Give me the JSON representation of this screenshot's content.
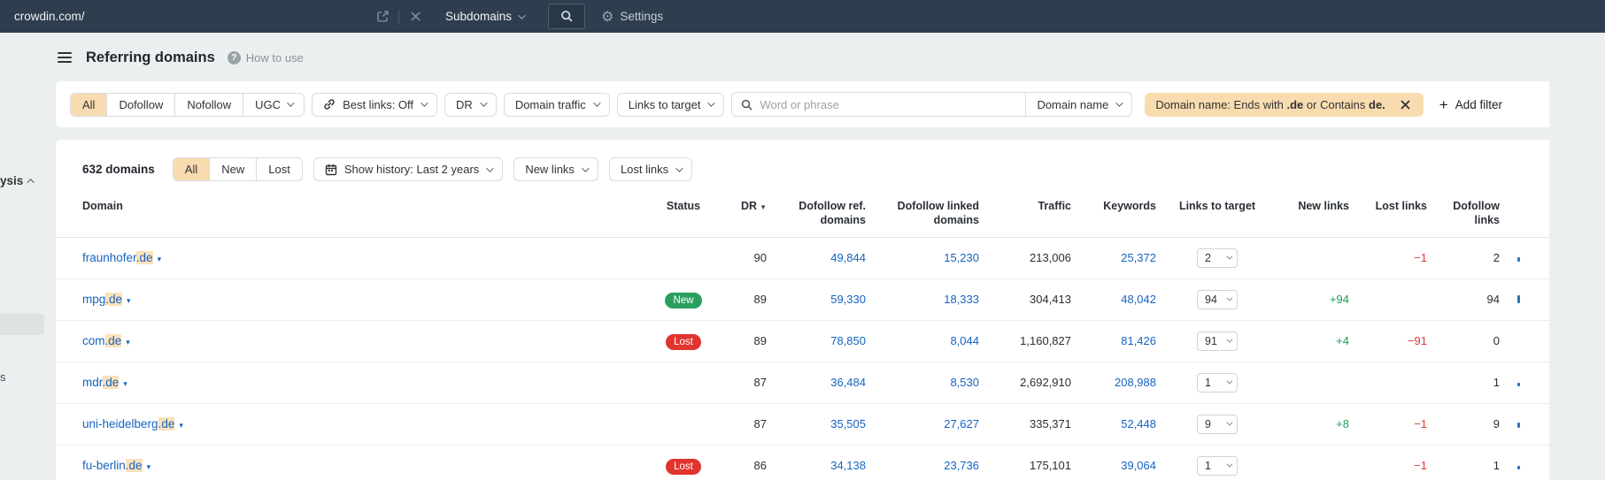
{
  "colors": {
    "topbar_bg": "#2f3e4e",
    "accent_blue": "#1564c0",
    "link_highlight": "#fbe2ba",
    "active_filter_bg": "#f8dcb0",
    "badge_new": "#2aa05f",
    "badge_lost": "#e0342f",
    "positive": "#1c9e56",
    "negative": "#e03a30"
  },
  "topbar": {
    "url_value": "crowdin.com/",
    "mode_label": "Subdomains",
    "settings_label": "Settings"
  },
  "sidebar": {
    "fragment_top": "ysis",
    "fragment_bottom": "s"
  },
  "header": {
    "title": "Referring domains",
    "help_label": "How to use"
  },
  "filters": {
    "link_type_segments": [
      {
        "label": "All",
        "active": true
      },
      {
        "label": "Dofollow"
      },
      {
        "label": "Nofollow"
      },
      {
        "label": "UGC",
        "chevron": true
      }
    ],
    "best_links_label": "Best links: Off",
    "dr_label": "DR",
    "domain_traffic_label": "Domain traffic",
    "links_to_target_label": "Links to target",
    "search_placeholder": "Word or phrase",
    "domain_name_label": "Domain name",
    "active_pill": {
      "part1": "Domain name: Ends with ",
      "bold1": ".de",
      "part2": " or Contains ",
      "bold2": "de."
    },
    "add_filter_label": "Add filter"
  },
  "toolbar": {
    "count": "632 domains",
    "segments": [
      {
        "label": "All",
        "active": true
      },
      {
        "label": "New"
      },
      {
        "label": "Lost"
      }
    ],
    "show_history_label": "Show history: Last 2 years",
    "new_links_label": "New links",
    "lost_links_label": "Lost links"
  },
  "table": {
    "columns": [
      {
        "key": "domain",
        "label": "Domain",
        "align": "left"
      },
      {
        "key": "status",
        "label": "Status",
        "align": "center"
      },
      {
        "key": "dr",
        "label": "DR",
        "align": "right",
        "sorted": true
      },
      {
        "key": "dofollow_ref",
        "label": "Dofollow ref. domains",
        "align": "right"
      },
      {
        "key": "dofollow_linked",
        "label": "Dofollow linked domains",
        "align": "right"
      },
      {
        "key": "traffic",
        "label": "Traffic",
        "align": "right"
      },
      {
        "key": "keywords",
        "label": "Keywords",
        "align": "right"
      },
      {
        "key": "links_to_target",
        "label": "Links to target",
        "align": "center"
      },
      {
        "key": "new_links",
        "label": "New links",
        "align": "right"
      },
      {
        "key": "lost_links",
        "label": "Lost links",
        "align": "right"
      },
      {
        "key": "dofollow_links",
        "label": "Dofollow links",
        "align": "right"
      },
      {
        "key": "spark",
        "label": "",
        "align": "left"
      }
    ],
    "rows": [
      {
        "domain_base": "fraunhofer",
        "domain_highlight": ".de",
        "status": "",
        "dr": "90",
        "dofollow_ref": "49,844",
        "dofollow_linked": "15,230",
        "traffic": "213,006",
        "keywords": "25,372",
        "links_to_target": "2",
        "new_links": "",
        "lost_links": "−1",
        "dofollow_links": "2",
        "spark_height": 5
      },
      {
        "domain_base": "mpg",
        "domain_highlight": ".de",
        "status": "New",
        "dr": "89",
        "dofollow_ref": "59,330",
        "dofollow_linked": "18,333",
        "traffic": "304,413",
        "keywords": "48,042",
        "links_to_target": "94",
        "new_links": "+94",
        "lost_links": "",
        "dofollow_links": "94",
        "spark_height": 9
      },
      {
        "domain_base": "com",
        "domain_highlight": ".de",
        "status": "Lost",
        "dr": "89",
        "dofollow_ref": "78,850",
        "dofollow_linked": "8,044",
        "traffic": "1,160,827",
        "keywords": "81,426",
        "links_to_target": "91",
        "new_links": "+4",
        "lost_links": "−91",
        "dofollow_links": "0",
        "spark_height": 0
      },
      {
        "domain_base": "mdr",
        "domain_highlight": ".de",
        "status": "",
        "dr": "87",
        "dofollow_ref": "36,484",
        "dofollow_linked": "8,530",
        "traffic": "2,692,910",
        "keywords": "208,988",
        "links_to_target": "1",
        "new_links": "",
        "lost_links": "",
        "dofollow_links": "1",
        "spark_height": 4
      },
      {
        "domain_base": "uni-heidelberg",
        "domain_highlight": ".de",
        "status": "",
        "dr": "87",
        "dofollow_ref": "35,505",
        "dofollow_linked": "27,627",
        "traffic": "335,371",
        "keywords": "52,448",
        "links_to_target": "9",
        "new_links": "+8",
        "lost_links": "−1",
        "dofollow_links": "9",
        "spark_height": 6
      },
      {
        "domain_base": "fu-berlin",
        "domain_highlight": ".de",
        "status": "Lost",
        "dr": "86",
        "dofollow_ref": "34,138",
        "dofollow_linked": "23,736",
        "traffic": "175,101",
        "keywords": "39,064",
        "links_to_target": "1",
        "new_links": "",
        "lost_links": "−1",
        "dofollow_links": "1",
        "spark_height": 4
      }
    ]
  }
}
